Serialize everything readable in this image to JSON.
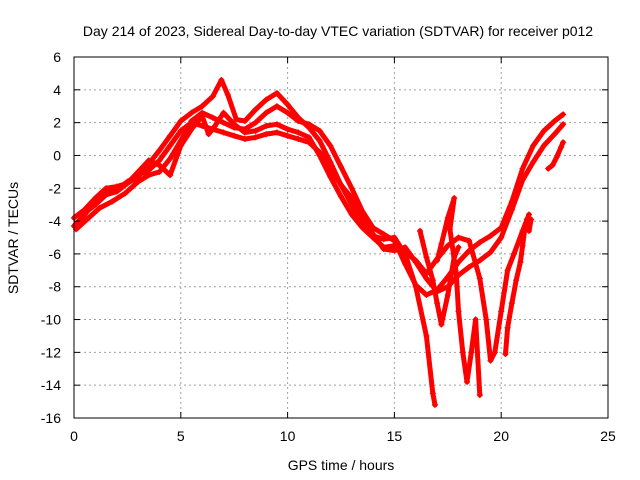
{
  "chart_data": {
    "type": "scatter",
    "title": "Day 214 of 2023, Sidereal Day-to-day VTEC variation (SDTVAR) for receiver p012",
    "xlabel": "GPS time / hours",
    "ylabel": "SDTVAR / TECUs",
    "xlim": [
      0,
      25
    ],
    "ylim": [
      -16,
      6
    ],
    "xticks": [
      0,
      5,
      10,
      15,
      20,
      25
    ],
    "yticks": [
      -16,
      -14,
      -12,
      -10,
      -8,
      -6,
      -4,
      -2,
      0,
      2,
      4,
      6
    ],
    "grid": true,
    "legend": "none",
    "marker": "+",
    "color": "#ff0000",
    "series": [
      {
        "points": [
          [
            0.0,
            -4.3
          ],
          [
            0.5,
            -3.6
          ],
          [
            1.0,
            -2.8
          ],
          [
            1.5,
            -2.3
          ],
          [
            2.0,
            -2.1
          ],
          [
            2.5,
            -1.6
          ],
          [
            3.0,
            -1.2
          ],
          [
            3.5,
            -0.9
          ],
          [
            4.0,
            -0.3
          ],
          [
            4.5,
            0.6
          ],
          [
            5.0,
            1.5
          ],
          [
            5.5,
            2.0
          ],
          [
            6.0,
            1.8
          ],
          [
            6.5,
            1.6
          ],
          [
            7.0,
            1.4
          ],
          [
            7.5,
            1.2
          ],
          [
            8.0,
            1.0
          ],
          [
            8.5,
            1.1
          ],
          [
            9.0,
            1.3
          ],
          [
            9.5,
            1.4
          ],
          [
            10.0,
            1.2
          ],
          [
            10.5,
            1.0
          ],
          [
            11.0,
            0.8
          ],
          [
            11.5,
            0.2
          ],
          [
            12.0,
            -0.8
          ],
          [
            12.5,
            -1.8
          ],
          [
            13.0,
            -2.6
          ],
          [
            13.5,
            -3.6
          ],
          [
            14.0,
            -4.8
          ],
          [
            14.5,
            -5.7
          ],
          [
            15.0,
            -5.8
          ],
          [
            15.5,
            -5.6
          ],
          [
            16.0,
            -6.5
          ],
          [
            16.5,
            -7.5
          ],
          [
            17.0,
            -8.3
          ],
          [
            17.5,
            -8.0
          ],
          [
            18.0,
            -7.3
          ],
          [
            18.5,
            -6.8
          ],
          [
            19.0,
            -6.4
          ],
          [
            19.5,
            -5.9
          ],
          [
            20.0,
            -5.0
          ],
          [
            20.5,
            -3.3
          ],
          [
            21.0,
            -1.5
          ],
          [
            21.5,
            -0.4
          ],
          [
            22.0,
            0.6
          ],
          [
            22.5,
            1.3
          ],
          [
            22.9,
            1.9
          ]
        ]
      },
      {
        "points": [
          [
            0.1,
            -4.5
          ],
          [
            0.6,
            -3.9
          ],
          [
            1.2,
            -3.2
          ],
          [
            1.8,
            -2.8
          ],
          [
            2.4,
            -2.3
          ],
          [
            3.0,
            -1.6
          ],
          [
            3.5,
            -1.2
          ],
          [
            4.0,
            -1.0
          ],
          [
            4.5,
            -0.2
          ],
          [
            5.0,
            0.9
          ],
          [
            5.5,
            2.1
          ],
          [
            6.0,
            2.6
          ],
          [
            6.5,
            2.3
          ],
          [
            7.0,
            2.0
          ],
          [
            7.5,
            1.7
          ],
          [
            8.0,
            1.6
          ],
          [
            8.5,
            2.0
          ],
          [
            9.0,
            2.6
          ],
          [
            9.5,
            3.0
          ],
          [
            10.0,
            2.6
          ],
          [
            10.5,
            2.1
          ],
          [
            11.0,
            1.9
          ],
          [
            11.5,
            1.5
          ],
          [
            12.0,
            0.6
          ],
          [
            12.5,
            -0.7
          ],
          [
            13.0,
            -2.0
          ],
          [
            13.5,
            -3.4
          ],
          [
            14.0,
            -4.4
          ],
          [
            14.5,
            -4.8
          ],
          [
            15.0,
            -5.2
          ],
          [
            15.5,
            -6.6
          ],
          [
            16.0,
            -7.9
          ],
          [
            16.5,
            -8.5
          ],
          [
            17.0,
            -8.2
          ],
          [
            17.5,
            -7.4
          ],
          [
            18.0,
            -6.5
          ],
          [
            18.5,
            -5.8
          ],
          [
            19.0,
            -5.3
          ],
          [
            19.5,
            -4.9
          ],
          [
            20.0,
            -4.4
          ],
          [
            20.5,
            -2.8
          ],
          [
            21.0,
            -0.8
          ],
          [
            21.5,
            0.6
          ],
          [
            22.0,
            1.5
          ],
          [
            22.5,
            2.1
          ],
          [
            22.9,
            2.5
          ]
        ]
      },
      {
        "points": [
          [
            0.0,
            -3.8
          ],
          [
            0.5,
            -3.3
          ],
          [
            1.0,
            -2.6
          ],
          [
            1.5,
            -2.0
          ],
          [
            2.0,
            -1.9
          ],
          [
            2.5,
            -1.7
          ],
          [
            3.0,
            -1.3
          ],
          [
            3.5,
            -0.5
          ],
          [
            4.0,
            0.3
          ],
          [
            4.5,
            1.2
          ],
          [
            5.0,
            2.1
          ],
          [
            5.5,
            2.6
          ],
          [
            6.0,
            3.0
          ],
          [
            6.5,
            3.6
          ],
          [
            6.9,
            4.6
          ],
          [
            7.2,
            3.7
          ],
          [
            7.6,
            2.2
          ],
          [
            8.0,
            2.1
          ],
          [
            8.5,
            2.8
          ],
          [
            9.0,
            3.4
          ],
          [
            9.5,
            3.8
          ],
          [
            10.0,
            3.1
          ],
          [
            10.5,
            2.3
          ],
          [
            11.0,
            1.7
          ],
          [
            11.5,
            0.9
          ],
          [
            12.0,
            -0.4
          ],
          [
            12.5,
            -1.8
          ],
          [
            13.0,
            -3.0
          ],
          [
            13.5,
            -4.2
          ],
          [
            14.0,
            -4.9
          ],
          [
            14.5,
            -5.1
          ],
          [
            15.0,
            -5.0
          ],
          [
            15.5,
            -6.0
          ],
          [
            16.0,
            -8.0
          ],
          [
            16.5,
            -11.0
          ],
          [
            16.8,
            -14.5
          ],
          [
            16.9,
            -15.2
          ]
        ]
      },
      {
        "points": [
          [
            0.6,
            -3.4
          ],
          [
            1.0,
            -3.0
          ],
          [
            1.5,
            -2.4
          ],
          [
            2.0,
            -2.2
          ],
          [
            2.5,
            -1.7
          ],
          [
            3.0,
            -1.0
          ],
          [
            3.5,
            -0.3
          ],
          [
            4.0,
            -0.6
          ],
          [
            4.5,
            -1.2
          ],
          [
            5.0,
            0.6
          ],
          [
            5.5,
            1.6
          ],
          [
            6.0,
            2.4
          ],
          [
            6.3,
            1.3
          ],
          [
            6.6,
            1.8
          ],
          [
            7.0,
            2.6
          ],
          [
            7.5,
            1.9
          ],
          [
            8.0,
            1.4
          ],
          [
            8.5,
            1.5
          ],
          [
            9.0,
            1.8
          ],
          [
            9.5,
            1.9
          ],
          [
            10.0,
            1.6
          ],
          [
            10.5,
            1.4
          ],
          [
            11.0,
            1.1
          ],
          [
            11.5,
            0.0
          ],
          [
            12.0,
            -1.3
          ],
          [
            12.5,
            -2.5
          ],
          [
            13.0,
            -3.6
          ],
          [
            13.5,
            -4.4
          ],
          [
            14.0,
            -5.0
          ],
          [
            14.5,
            -5.6
          ],
          [
            15.0,
            -5.5
          ],
          [
            15.5,
            -5.9
          ],
          [
            16.0,
            -6.4
          ],
          [
            16.5,
            -7.2
          ],
          [
            17.0,
            -6.3
          ],
          [
            17.5,
            -5.5
          ],
          [
            18.0,
            -5.0
          ],
          [
            18.5,
            -5.2
          ],
          [
            19.0,
            -7.5
          ],
          [
            19.3,
            -10.0
          ],
          [
            19.5,
            -12.5
          ],
          [
            19.7,
            -12.0
          ],
          [
            20.0,
            -9.5
          ],
          [
            20.3,
            -7.0
          ],
          [
            20.6,
            -6.0
          ],
          [
            21.0,
            -4.6
          ],
          [
            21.3,
            -3.6
          ]
        ]
      },
      {
        "points": [
          [
            16.2,
            -4.6
          ],
          [
            16.5,
            -6.2
          ],
          [
            16.8,
            -7.6
          ],
          [
            17.0,
            -9.0
          ],
          [
            17.2,
            -10.3
          ],
          [
            17.5,
            -8.5
          ],
          [
            17.8,
            -6.2
          ],
          [
            18.0,
            -5.6
          ]
        ]
      },
      {
        "points": [
          [
            17.0,
            -6.4
          ],
          [
            17.2,
            -5.4
          ],
          [
            17.5,
            -3.8
          ],
          [
            17.8,
            -2.6
          ],
          [
            17.6,
            -4.5
          ],
          [
            17.9,
            -7.2
          ],
          [
            18.0,
            -9.5
          ],
          [
            18.2,
            -12.0
          ],
          [
            18.4,
            -13.8
          ],
          [
            18.6,
            -12.0
          ],
          [
            18.8,
            -10.0
          ],
          [
            19.0,
            -14.6
          ]
        ]
      },
      {
        "points": [
          [
            20.2,
            -12.1
          ],
          [
            20.3,
            -10.5
          ],
          [
            20.5,
            -9.0
          ],
          [
            20.7,
            -7.6
          ],
          [
            20.9,
            -6.5
          ],
          [
            21.0,
            -5.5
          ],
          [
            21.1,
            -4.5
          ],
          [
            21.2,
            -3.9
          ],
          [
            21.3,
            -4.6
          ],
          [
            21.4,
            -3.9
          ]
        ]
      },
      {
        "points": [
          [
            22.2,
            -0.8
          ],
          [
            22.4,
            -0.6
          ],
          [
            22.6,
            -0.1
          ],
          [
            22.8,
            0.5
          ],
          [
            22.9,
            0.8
          ]
        ]
      }
    ]
  }
}
